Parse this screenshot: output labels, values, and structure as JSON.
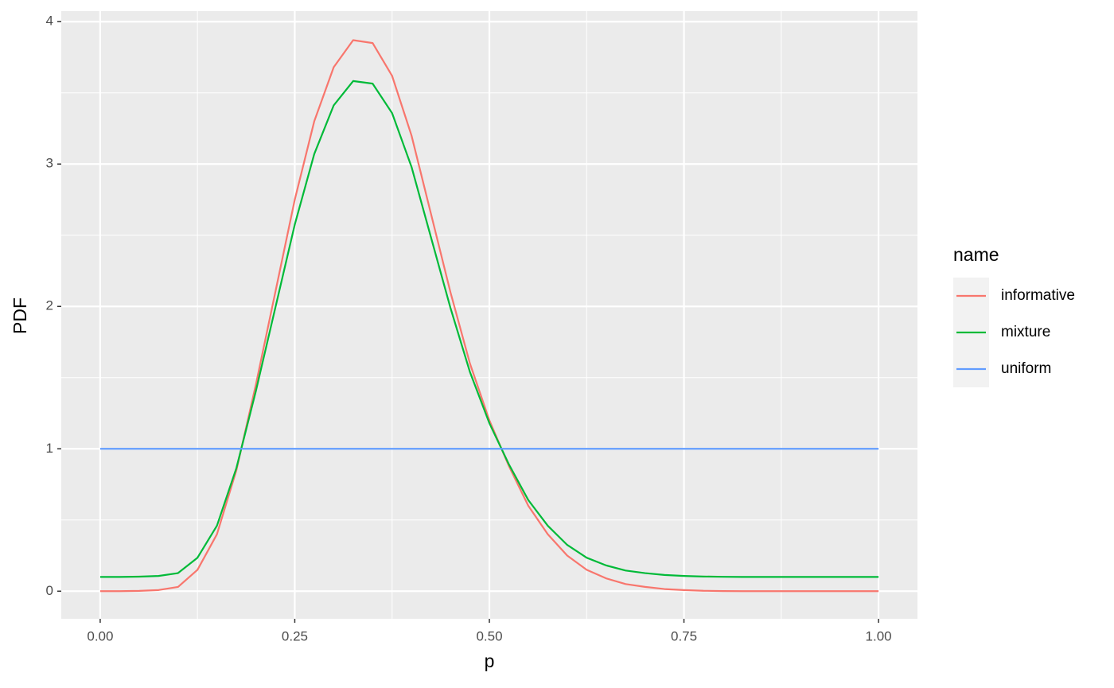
{
  "chart_data": {
    "type": "line",
    "x_label": "p",
    "y_label": "PDF",
    "legend_title": "name",
    "legend_position": "right",
    "grid": true,
    "x": [
      0,
      0.025,
      0.05,
      0.075,
      0.1,
      0.125,
      0.15,
      0.175,
      0.2,
      0.225,
      0.25,
      0.275,
      0.3,
      0.325,
      0.35,
      0.375,
      0.4,
      0.425,
      0.45,
      0.475,
      0.5,
      0.525,
      0.55,
      0.575,
      0.6,
      0.625,
      0.65,
      0.675,
      0.7,
      0.725,
      0.75,
      0.775,
      0.8,
      0.825,
      0.85,
      0.875,
      0.9,
      0.925,
      0.95,
      0.975,
      1
    ],
    "series": [
      {
        "name": "informative",
        "color": "#F8766D",
        "values": [
          0,
          0,
          0.002,
          0.008,
          0.03,
          0.15,
          0.4,
          0.85,
          1.45,
          2.1,
          2.75,
          3.3,
          3.68,
          3.87,
          3.85,
          3.62,
          3.2,
          2.65,
          2.1,
          1.6,
          1.2,
          0.88,
          0.6,
          0.4,
          0.25,
          0.15,
          0.09,
          0.05,
          0.03,
          0.015,
          0.008,
          0.003,
          0.001,
          0,
          0,
          0,
          0,
          0,
          0,
          0,
          0
        ]
      },
      {
        "name": "mixture",
        "color": "#00BA38",
        "values": [
          0.1,
          0.1,
          0.102,
          0.107,
          0.127,
          0.235,
          0.46,
          0.865,
          1.405,
          1.99,
          2.575,
          3.07,
          3.412,
          3.583,
          3.565,
          3.358,
          2.98,
          2.485,
          1.99,
          1.54,
          1.18,
          0.892,
          0.64,
          0.46,
          0.325,
          0.235,
          0.181,
          0.145,
          0.127,
          0.114,
          0.107,
          0.103,
          0.101,
          0.1,
          0.1,
          0.1,
          0.1,
          0.1,
          0.1,
          0.1,
          0.1
        ]
      },
      {
        "name": "uniform",
        "color": "#619CFF",
        "values": [
          1,
          1,
          1,
          1,
          1,
          1,
          1,
          1,
          1,
          1,
          1,
          1,
          1,
          1,
          1,
          1,
          1,
          1,
          1,
          1,
          1,
          1,
          1,
          1,
          1,
          1,
          1,
          1,
          1,
          1,
          1,
          1,
          1,
          1,
          1,
          1,
          1,
          1,
          1,
          1,
          1
        ]
      }
    ],
    "xlim": [
      -0.05,
      1.05
    ],
    "ylim": [
      -0.194,
      4.074
    ],
    "xticks": [
      {
        "value": 0,
        "label": "0.00"
      },
      {
        "value": 0.25,
        "label": "0.25"
      },
      {
        "value": 0.5,
        "label": "0.50"
      },
      {
        "value": 0.75,
        "label": "0.75"
      },
      {
        "value": 1,
        "label": "1.00"
      }
    ],
    "yticks": [
      0,
      1,
      2,
      3,
      4
    ],
    "xminor": [
      0.125,
      0.375,
      0.625,
      0.875
    ],
    "yminor": [
      0.5,
      1.5,
      2.5,
      3.5
    ]
  }
}
